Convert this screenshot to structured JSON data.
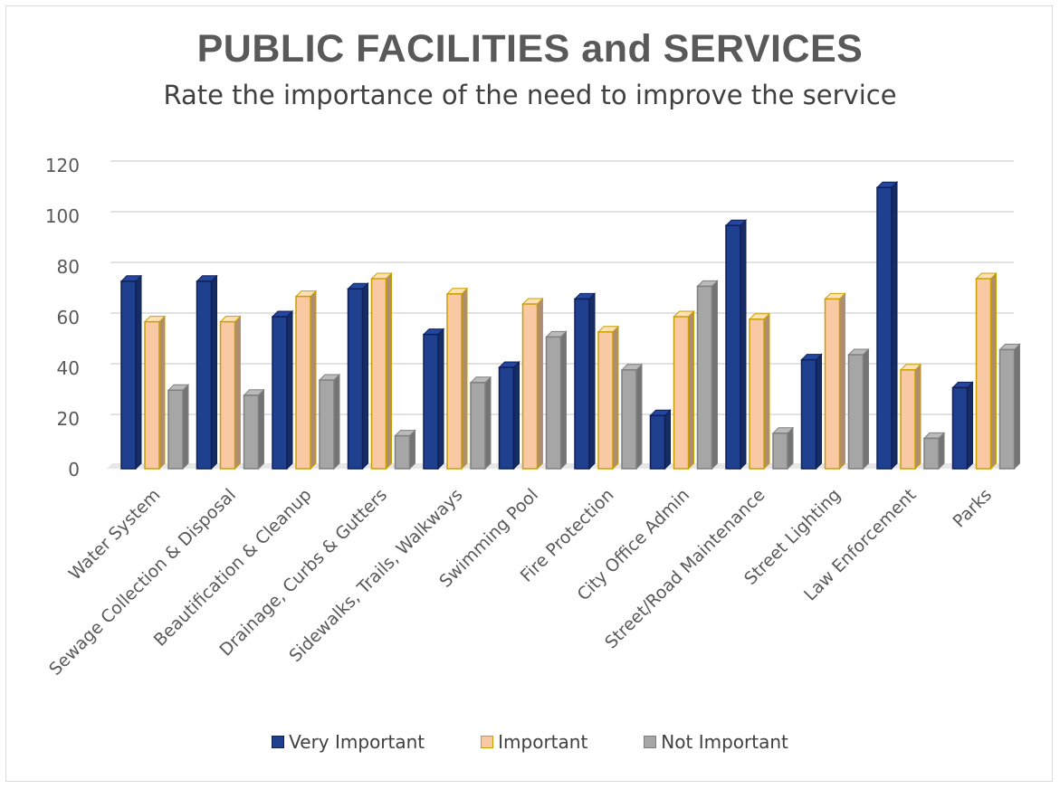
{
  "chart_data": {
    "type": "bar",
    "title": "PUBLIC FACILITIES and SERVICES",
    "subtitle": "Rate the importance of the need to improve the service",
    "categories": [
      "Water System",
      "Sewage Collection & Disposal",
      "Beautification & Cleanup",
      "Drainage, Curbs & Gutters",
      "Sidewalks, Trails, Walkways",
      "Swimming Pool",
      "Fire Protection",
      "City Office Admin",
      "Street/Road Maintenance",
      "Street Lighting",
      "Law Enforcement",
      "Parks"
    ],
    "series": [
      {
        "name": "Very Important",
        "values": [
          74,
          74,
          60,
          71,
          53,
          40,
          67,
          21,
          96,
          43,
          111,
          32
        ],
        "color": "#1f3f8f",
        "border": "#0f1f55"
      },
      {
        "name": "Important",
        "values": [
          58,
          58,
          68,
          75,
          69,
          65,
          54,
          60,
          59,
          67,
          39,
          75
        ],
        "color": "#f9c9a3",
        "border": "#c9a000"
      },
      {
        "name": "Not Important",
        "values": [
          31,
          29,
          35,
          13,
          34,
          52,
          39,
          72,
          14,
          45,
          12,
          47
        ],
        "color": "#a6a6a6",
        "border": "#7f7f7f"
      }
    ],
    "ylim": [
      0,
      120
    ],
    "yticks": [
      "0",
      "20",
      "40",
      "60",
      "80",
      "100",
      "120"
    ],
    "grid": true,
    "legend_position": "bottom"
  }
}
